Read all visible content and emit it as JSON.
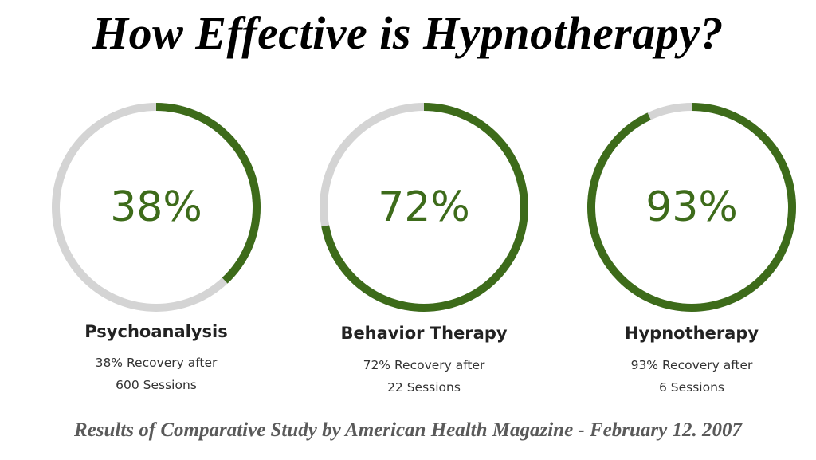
{
  "title": "How Effective is Hypnotherapy?",
  "footer": "Results of Comparative Study by American Health Magazine - February 12. 2007",
  "colors": {
    "progress": "#3d6b1a",
    "track": "#d4d4d4",
    "value_text": "#3d6b1a"
  },
  "chart_data": {
    "type": "pie",
    "unit": "%",
    "categories": [
      "Psychoanalysis",
      "Behavior Therapy",
      "Hypnotherapy"
    ],
    "values": [
      38,
      72,
      93
    ],
    "items": [
      {
        "value_label": "38%",
        "value": 38,
        "name": "Psychoanalysis",
        "desc_line1": "38% Recovery after",
        "desc_line2": "600 Sessions"
      },
      {
        "value_label": "72%",
        "value": 72,
        "name": "Behavior Therapy",
        "desc_line1": "72% Recovery after",
        "desc_line2": "22 Sessions"
      },
      {
        "value_label": "93%",
        "value": 93,
        "name": "Hypnotherapy",
        "desc_line1": "93% Recovery after",
        "desc_line2": "6 Sessions"
      }
    ]
  }
}
